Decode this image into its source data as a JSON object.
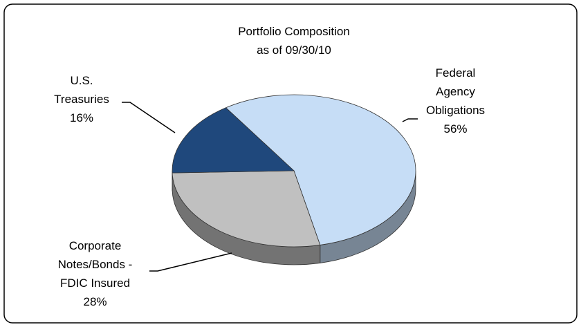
{
  "chart_data": {
    "type": "pie3d",
    "title": "Portfolio Composition",
    "subtitle": "as of 09/30/10",
    "categories": [
      "Federal Agency Obligations",
      "Corporate Notes/Bonds - FDIC Insured",
      "U.S. Treasuries"
    ],
    "values": [
      56,
      28,
      16
    ],
    "value_labels": [
      "56%",
      "28%",
      "16%"
    ],
    "colors": [
      "#c6ddf6",
      "#c0c0c0",
      "#1f487c"
    ]
  }
}
